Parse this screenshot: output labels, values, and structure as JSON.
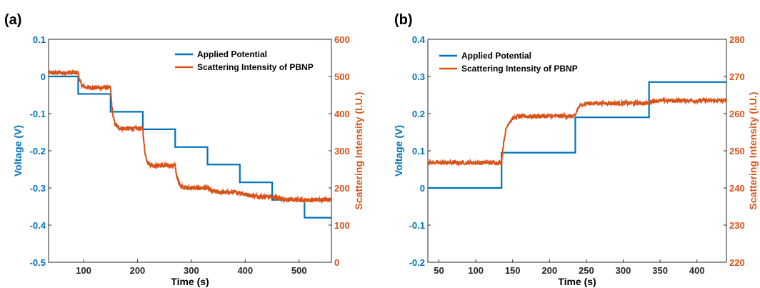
{
  "colors": {
    "potential": "#0072bd",
    "scattering": "#d95319",
    "frame": "#262626"
  },
  "chart_data": [
    {
      "type": "line",
      "panel_label": "(a)",
      "xlabel": "Time (s)",
      "ylabel_left": "Voltage (V)",
      "ylabel_right": "Scattering Intensity (I.U.)",
      "xlim": [
        35,
        560
      ],
      "ylim_left": [
        -0.5,
        0.1
      ],
      "ylim_right": [
        0,
        600
      ],
      "xticks": [
        "100",
        "200",
        "300",
        "400",
        "500"
      ],
      "yticks_left": [
        "-0.5",
        "-0.4",
        "-0.3",
        "-0.2",
        "-0.1",
        "0",
        "0.1"
      ],
      "yticks_right": [
        "0",
        "100",
        "200",
        "300",
        "400",
        "500",
        "600"
      ],
      "legend": [
        "Applied Potential",
        "Scattering Intensity of PBNP"
      ],
      "legend_position": "top-right",
      "series": [
        {
          "name": "Applied Potential",
          "axis": "left",
          "kind": "step",
          "x": [
            35,
            90,
            150,
            210,
            270,
            330,
            390,
            450,
            510,
            560
          ],
          "y": [
            0,
            -0.047,
            -0.095,
            -0.142,
            -0.19,
            -0.237,
            -0.285,
            -0.332,
            -0.38,
            -0.38
          ]
        },
        {
          "name": "Scattering Intensity of PBNP",
          "axis": "right",
          "kind": "decay",
          "start": [
            35,
            510
          ],
          "steps": [
            {
              "t": 90,
              "to": 470,
              "tau": 4
            },
            {
              "t": 150,
              "to": 360,
              "tau": 4
            },
            {
              "t": 210,
              "to": 260,
              "tau": 4
            },
            {
              "t": 270,
              "to": 200,
              "tau": 5
            },
            {
              "t": 330,
              "to": 188,
              "tau": 8
            },
            {
              "t": 390,
              "to": 176,
              "tau": 18
            },
            {
              "t": 450,
              "to": 166,
              "tau": 25
            },
            {
              "t": 510,
              "to": 170,
              "tau": 50
            }
          ],
          "end": 560,
          "noise": 0.6
        }
      ]
    },
    {
      "type": "line",
      "panel_label": "(b)",
      "xlabel": "Time (s)",
      "ylabel_left": "Voltage (V)",
      "ylabel_right": "Scattering Intensity (I.U.)",
      "xlim": [
        35,
        440
      ],
      "ylim_left": [
        -0.2,
        0.4
      ],
      "ylim_right": [
        220,
        280
      ],
      "xticks": [
        "50",
        "100",
        "150",
        "200",
        "250",
        "300",
        "350",
        "400"
      ],
      "yticks_left": [
        "-0.2",
        "-0.1",
        "0",
        "0.1",
        "0.2",
        "0.3",
        "0.4"
      ],
      "yticks_right": [
        "220",
        "230",
        "240",
        "250",
        "260",
        "270",
        "280"
      ],
      "legend": [
        "Applied Potential",
        "Scattering Intensity of PBNP"
      ],
      "legend_position": "top-left",
      "series": [
        {
          "name": "Applied Potential",
          "axis": "left",
          "kind": "step",
          "x": [
            35,
            135,
            235,
            335,
            440
          ],
          "y": [
            0,
            0.095,
            0.19,
            0.285,
            0.285
          ]
        },
        {
          "name": "Scattering Intensity of PBNP",
          "axis": "right",
          "kind": "decay",
          "start": [
            35,
            246.8
          ],
          "steps": [
            {
              "t": 135,
              "to": 259.3,
              "tau": 5
            },
            {
              "t": 235,
              "to": 262.8,
              "tau": 4
            },
            {
              "t": 335,
              "to": 263.5,
              "tau": 3
            }
          ],
          "end": 440,
          "noise": 0.55
        }
      ]
    }
  ]
}
